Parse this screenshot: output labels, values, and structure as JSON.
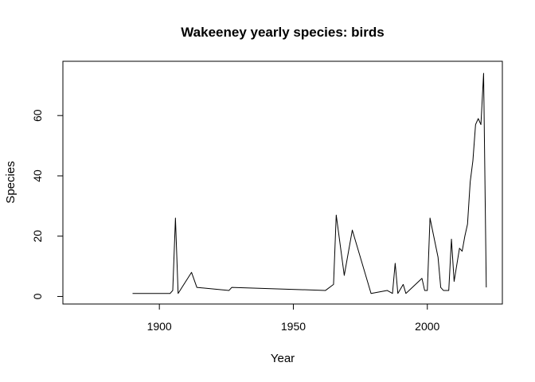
{
  "chart_data": {
    "type": "line",
    "title": "Wakeeney yearly species: birds",
    "xlabel": "Year",
    "ylabel": "Species",
    "xlim": [
      1864,
      2028
    ],
    "ylim": [
      -2.5,
      78
    ],
    "x_ticks": [
      1900,
      1950,
      2000
    ],
    "y_ticks": [
      0,
      20,
      40,
      60
    ],
    "grid": false,
    "series": [
      {
        "x": [
          1890,
          1904,
          1905,
          1906,
          1907,
          1912,
          1914,
          1926,
          1927,
          1962,
          1965,
          1966,
          1969,
          1972,
          1979,
          1985,
          1987,
          1988,
          1989,
          1991,
          1992,
          1998,
          1999,
          2000,
          2001,
          2004,
          2005,
          2006,
          2008,
          2009,
          2010,
          2012,
          2013,
          2014,
          2015,
          2016,
          2017,
          2018,
          2019,
          2020,
          2021,
          2022
        ],
        "y": [
          1,
          1,
          2,
          26,
          1,
          8,
          3,
          2,
          3,
          2,
          4,
          27,
          7,
          22,
          1,
          2,
          1,
          11,
          1,
          4,
          1,
          6,
          2,
          2,
          26,
          13,
          3,
          2,
          2,
          19,
          5,
          16,
          15,
          20,
          24,
          38,
          45,
          57,
          59,
          57,
          74,
          3
        ],
        "color": "#000000"
      }
    ]
  }
}
